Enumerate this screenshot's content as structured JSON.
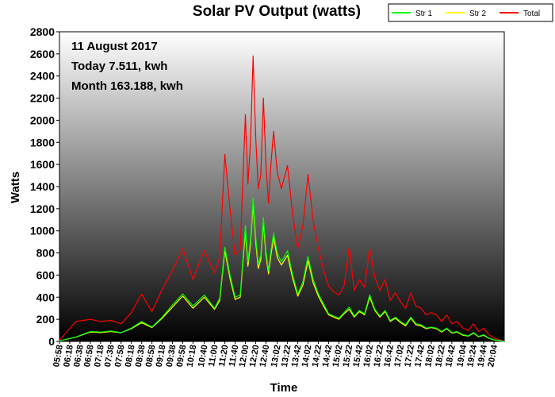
{
  "chart_data": {
    "type": "line",
    "title": "Solar PV Output (watts)",
    "xlabel": "Time",
    "ylabel": "Watts",
    "ylim": [
      0,
      2800
    ],
    "yticks": [
      0,
      200,
      400,
      600,
      800,
      1000,
      1200,
      1400,
      1600,
      1800,
      2000,
      2200,
      2400,
      2600,
      2800
    ],
    "xlim": [
      "05:58",
      "20:24"
    ],
    "xticks": [
      "05:58",
      "06:18",
      "06:38",
      "06:58",
      "07:18",
      "07:38",
      "07:58",
      "08:18",
      "08:38",
      "08:58",
      "09:18",
      "09:38",
      "09:58",
      "10:18",
      "10:40",
      "11:00",
      "11:20",
      "11:40",
      "12:00",
      "12:20",
      "12:40",
      "13:02",
      "13:22",
      "13:42",
      "14:02",
      "14:22",
      "14:42",
      "15:02",
      "15:22",
      "15:42",
      "16:02",
      "16:22",
      "16:42",
      "17:02",
      "17:22",
      "17:42",
      "18:02",
      "18:22",
      "18:42",
      "19:04",
      "19:24",
      "19:44",
      "20:04"
    ],
    "annotations": [
      "11 August 2017",
      "Today 7.511, kwh",
      "Month 163.188, kwh"
    ],
    "legend_position": "top-right",
    "grid": false,
    "series": [
      {
        "name": "Str 1",
        "color": "#00ff00",
        "x": [
          "05:58",
          "06:30",
          "06:58",
          "07:18",
          "07:38",
          "07:58",
          "08:18",
          "08:38",
          "08:58",
          "09:18",
          "09:38",
          "09:58",
          "10:18",
          "10:40",
          "11:00",
          "11:10",
          "11:20",
          "11:30",
          "11:40",
          "11:50",
          "12:00",
          "12:05",
          "12:10",
          "12:15",
          "12:20",
          "12:25",
          "12:30",
          "12:35",
          "12:40",
          "12:45",
          "12:50",
          "12:55",
          "13:02",
          "13:10",
          "13:22",
          "13:32",
          "13:42",
          "13:52",
          "14:02",
          "14:12",
          "14:22",
          "14:32",
          "14:42",
          "14:52",
          "15:02",
          "15:12",
          "15:22",
          "15:32",
          "15:42",
          "15:52",
          "16:02",
          "16:12",
          "16:22",
          "16:32",
          "16:42",
          "16:52",
          "17:02",
          "17:12",
          "17:22",
          "17:32",
          "17:42",
          "17:52",
          "18:02",
          "18:12",
          "18:22",
          "18:32",
          "18:42",
          "18:52",
          "19:04",
          "19:14",
          "19:24",
          "19:34",
          "19:44",
          "19:54",
          "20:04",
          "20:14",
          "20:24"
        ],
        "values": [
          5,
          40,
          90,
          85,
          95,
          80,
          120,
          180,
          130,
          220,
          330,
          430,
          320,
          420,
          300,
          390,
          850,
          600,
          400,
          420,
          1050,
          720,
          920,
          1300,
          950,
          700,
          780,
          1120,
          820,
          640,
          830,
          980,
          800,
          720,
          820,
          600,
          430,
          540,
          770,
          560,
          430,
          340,
          250,
          230,
          210,
          260,
          310,
          230,
          280,
          250,
          420,
          290,
          230,
          280,
          190,
          220,
          180,
          150,
          220,
          160,
          150,
          120,
          130,
          120,
          90,
          120,
          80,
          90,
          60,
          50,
          80,
          45,
          60,
          30,
          15,
          8,
          0
        ]
      },
      {
        "name": "Str 2",
        "color": "#ffff00",
        "x": [
          "05:58",
          "06:30",
          "06:58",
          "07:18",
          "07:38",
          "07:58",
          "08:18",
          "08:38",
          "08:58",
          "09:18",
          "09:38",
          "09:58",
          "10:18",
          "10:40",
          "11:00",
          "11:10",
          "11:20",
          "11:30",
          "11:40",
          "11:50",
          "12:00",
          "12:05",
          "12:10",
          "12:15",
          "12:20",
          "12:25",
          "12:30",
          "12:35",
          "12:40",
          "12:45",
          "12:50",
          "12:55",
          "13:02",
          "13:10",
          "13:22",
          "13:32",
          "13:42",
          "13:52",
          "14:02",
          "14:12",
          "14:22",
          "14:32",
          "14:42",
          "14:52",
          "15:02",
          "15:12",
          "15:22",
          "15:32",
          "15:42",
          "15:52",
          "16:02",
          "16:12",
          "16:22",
          "16:32",
          "16:42",
          "16:52",
          "17:02",
          "17:12",
          "17:22",
          "17:32",
          "17:42",
          "17:52",
          "18:02",
          "18:12",
          "18:22",
          "18:32",
          "18:42",
          "18:52",
          "19:04",
          "19:14",
          "19:24",
          "19:34",
          "19:44",
          "19:54",
          "20:04",
          "20:14",
          "20:24"
        ],
        "values": [
          5,
          38,
          85,
          80,
          90,
          78,
          115,
          170,
          125,
          210,
          310,
          410,
          300,
          400,
          290,
          370,
          820,
          570,
          380,
          400,
          1000,
          680,
          880,
          1250,
          900,
          660,
          740,
          1080,
          780,
          610,
          790,
          940,
          760,
          690,
          780,
          570,
          410,
          510,
          730,
          530,
          410,
          320,
          240,
          220,
          200,
          250,
          290,
          220,
          270,
          240,
          400,
          280,
          220,
          270,
          180,
          210,
          170,
          140,
          210,
          150,
          140,
          115,
          125,
          115,
          85,
          115,
          75,
          85,
          55,
          48,
          75,
          42,
          55,
          28,
          14,
          7,
          0
        ]
      },
      {
        "name": "Total",
        "color": "#ff0000",
        "x": [
          "05:58",
          "06:30",
          "06:58",
          "07:18",
          "07:38",
          "07:58",
          "08:18",
          "08:38",
          "08:58",
          "09:18",
          "09:38",
          "09:58",
          "10:18",
          "10:40",
          "11:00",
          "11:10",
          "11:20",
          "11:30",
          "11:40",
          "11:50",
          "12:00",
          "12:05",
          "12:10",
          "12:15",
          "12:20",
          "12:25",
          "12:30",
          "12:35",
          "12:40",
          "12:45",
          "12:50",
          "12:55",
          "13:02",
          "13:10",
          "13:22",
          "13:32",
          "13:42",
          "13:52",
          "14:02",
          "14:12",
          "14:22",
          "14:32",
          "14:42",
          "14:52",
          "15:02",
          "15:12",
          "15:22",
          "15:32",
          "15:42",
          "15:52",
          "16:02",
          "16:12",
          "16:22",
          "16:32",
          "16:42",
          "16:52",
          "17:02",
          "17:12",
          "17:22",
          "17:32",
          "17:42",
          "17:52",
          "18:02",
          "18:12",
          "18:22",
          "18:32",
          "18:42",
          "18:52",
          "19:04",
          "19:14",
          "19:24",
          "19:34",
          "19:44",
          "19:54",
          "20:04",
          "20:14",
          "20:24"
        ],
        "values": [
          10,
          180,
          200,
          180,
          190,
          160,
          260,
          430,
          270,
          470,
          640,
          840,
          560,
          820,
          620,
          760,
          1690,
          1200,
          780,
          830,
          2050,
          1420,
          1800,
          2580,
          1850,
          1380,
          1500,
          2200,
          1600,
          1250,
          1620,
          1900,
          1530,
          1380,
          1590,
          1150,
          840,
          1050,
          1510,
          1090,
          840,
          650,
          500,
          450,
          420,
          500,
          850,
          460,
          560,
          490,
          840,
          580,
          460,
          560,
          370,
          440,
          360,
          300,
          440,
          320,
          300,
          240,
          260,
          240,
          180,
          240,
          160,
          180,
          120,
          100,
          160,
          90,
          120,
          60,
          30,
          16,
          0
        ]
      }
    ]
  }
}
